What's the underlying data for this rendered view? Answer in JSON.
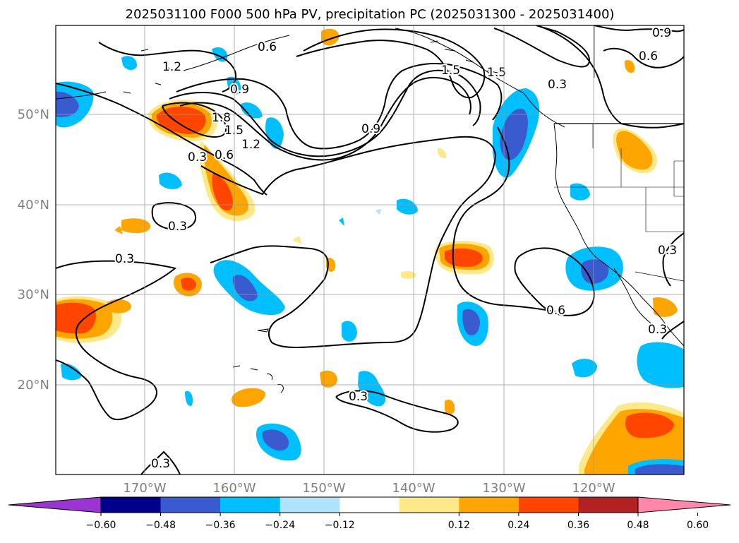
{
  "figure": {
    "title": "2025031100 F000 500 hPa PV, precipitation PC (2025031300 - 2025031400)"
  },
  "map": {
    "lat_labels": [
      "50°N",
      "40°N",
      "30°N",
      "20°N"
    ],
    "lon_labels": [
      "170°W",
      "160°W",
      "150°W",
      "140°W",
      "130°W",
      "120°W"
    ],
    "contour_labels": [
      "0.3",
      "0.3",
      "0.3",
      "0.3",
      "0.3",
      "0.3",
      "0.3",
      "0.3",
      "0.6",
      "0.6",
      "0.6",
      "0.6",
      "0.9",
      "0.9",
      "0.9",
      "1.2",
      "1.2",
      "1.5",
      "1.5",
      "1.5",
      "1.8"
    ]
  },
  "colorbar": {
    "tick_labels": [
      "−0.60",
      "−0.48",
      "−0.36",
      "−0.24",
      "−0.12",
      "0.12",
      "0.24",
      "0.36",
      "0.48",
      "0.60"
    ],
    "colors": [
      "#9b35d1",
      "#00008b",
      "#3a5bd0",
      "#00bfff",
      "#aee3fb",
      "#ffffff",
      "#fde98a",
      "#ffa500",
      "#ff4500",
      "#b22222",
      "#ff88aa"
    ]
  }
}
